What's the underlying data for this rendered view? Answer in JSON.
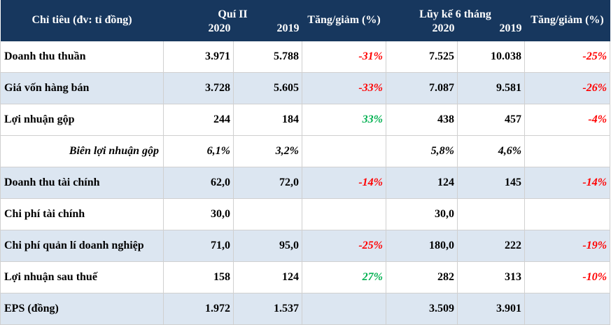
{
  "header": {
    "label": "Chỉ tiêu (đv: tỉ đồng)",
    "q2_group": "Quí II",
    "ytd_group": "Lũy kế 6 tháng",
    "change_q2": "Tăng/giảm (%)",
    "change_ytd": "Tăng/giảm (%)",
    "q2_year_a": "2020",
    "q2_year_b": "2019",
    "ytd_year_a": "2020",
    "ytd_year_b": "2019"
  },
  "rows": [
    {
      "name": "Doanh thu thuần",
      "q2_2020": "3.971",
      "q2_2019": "5.788",
      "q2_change": "-31%",
      "ytd_2020": "7.525",
      "ytd_2019": "10.038",
      "ytd_change": "-25%"
    },
    {
      "name": "Giá vốn hàng bán",
      "q2_2020": "3.728",
      "q2_2019": "5.605",
      "q2_change": "-33%",
      "ytd_2020": "7.087",
      "ytd_2019": "9.581",
      "ytd_change": "-26%"
    },
    {
      "name": "Lợi nhuận gộp",
      "q2_2020": "244",
      "q2_2019": "184",
      "q2_change": "33%",
      "ytd_2020": "438",
      "ytd_2019": "457",
      "ytd_change": "-4%"
    },
    {
      "name": "Biên lợi nhuận gộp",
      "q2_2020": "6,1%",
      "q2_2019": "3,2%",
      "q2_change": "",
      "ytd_2020": "5,8%",
      "ytd_2019": "4,6%",
      "ytd_change": ""
    },
    {
      "name": "Doanh thu tài chính",
      "q2_2020": "62,0",
      "q2_2019": "72,0",
      "q2_change": "-14%",
      "ytd_2020": "124",
      "ytd_2019": "145",
      "ytd_change": "-14%"
    },
    {
      "name": "Chi phí tài chính",
      "q2_2020": "30,0",
      "q2_2019": "",
      "q2_change": "",
      "ytd_2020": "30,0",
      "ytd_2019": "",
      "ytd_change": ""
    },
    {
      "name": "Chi phí quản lí doanh nghiệp",
      "q2_2020": "71,0",
      "q2_2019": "95,0",
      "q2_change": "-25%",
      "ytd_2020": "180,0",
      "ytd_2019": "222",
      "ytd_change": "-19%"
    },
    {
      "name": "Lợi nhuận sau thuế",
      "q2_2020": "158",
      "q2_2019": "124",
      "q2_change": "27%",
      "ytd_2020": "282",
      "ytd_2019": "313",
      "ytd_change": "-10%"
    },
    {
      "name": "EPS (đồng)",
      "q2_2020": "1.972",
      "q2_2019": "1.537",
      "q2_change": "",
      "ytd_2020": "3.509",
      "ytd_2019": "3.901",
      "ytd_change": ""
    }
  ],
  "colors": {
    "header_bg": "#17375e",
    "row_shade": "#dce6f1",
    "negative": "#ff0000",
    "positive": "#00b050"
  }
}
